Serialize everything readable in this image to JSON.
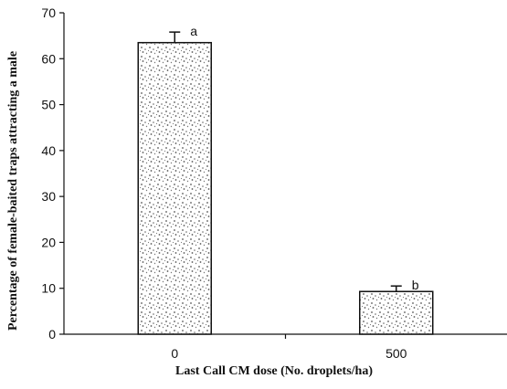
{
  "chart_data": {
    "type": "bar",
    "title": "",
    "xlabel": "Last Call CM dose (No. droplets/ha)",
    "ylabel": "Percentage of female-baited traps attracting a male",
    "categories": [
      "0",
      "500"
    ],
    "values": [
      63.5,
      9.3
    ],
    "error_plus": [
      2.3,
      1.2
    ],
    "significance_labels": [
      "a",
      "b"
    ],
    "ylim": [
      0,
      70
    ],
    "y_ticks": [
      "0",
      "10",
      "20",
      "30",
      "40",
      "50",
      "60",
      "70"
    ],
    "grid": false,
    "legend": "none",
    "bar_fill": "stippled gray texture"
  }
}
